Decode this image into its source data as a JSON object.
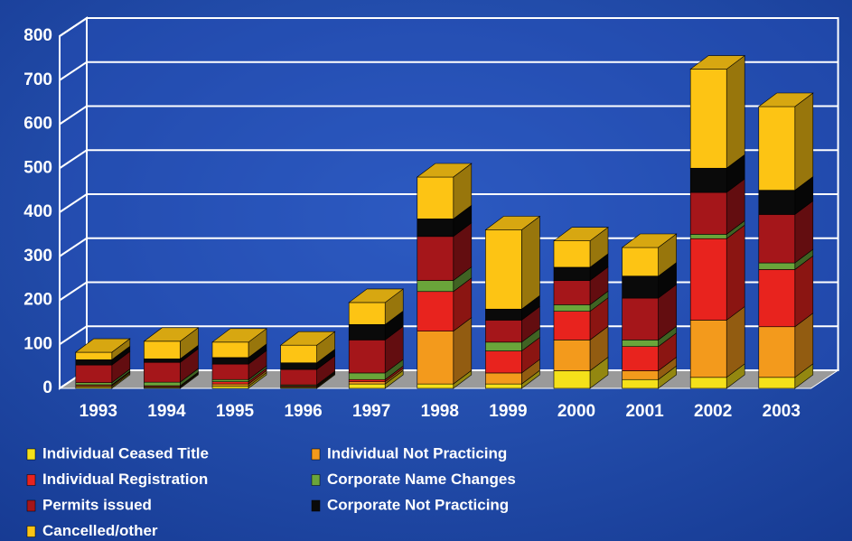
{
  "chart_data": {
    "type": "bar",
    "stacked": true,
    "categories": [
      "1993",
      "1994",
      "1995",
      "1996",
      "1997",
      "1998",
      "1999",
      "2000",
      "2001",
      "2002",
      "2003"
    ],
    "series": [
      {
        "name": "Individual Ceased Title",
        "color": "#f5e11a",
        "values": [
          3,
          2,
          5,
          2,
          10,
          10,
          10,
          40,
          20,
          25,
          25
        ]
      },
      {
        "name": "Individual Not Practicing",
        "color": "#f39a1c",
        "values": [
          3,
          2,
          5,
          2,
          5,
          120,
          25,
          70,
          20,
          130,
          115
        ]
      },
      {
        "name": "Individual Registration",
        "color": "#e8231e",
        "values": [
          2,
          2,
          5,
          2,
          5,
          90,
          50,
          65,
          55,
          185,
          130
        ]
      },
      {
        "name": "Corporate Name Changes",
        "color": "#6aa53a",
        "values": [
          5,
          8,
          5,
          2,
          15,
          25,
          20,
          15,
          15,
          10,
          15
        ]
      },
      {
        "name": "Permits issued",
        "color": "#a5161a",
        "values": [
          40,
          45,
          35,
          35,
          75,
          100,
          50,
          55,
          95,
          95,
          110
        ]
      },
      {
        "name": "Corporate Not Practicing",
        "color": "#0a0a0a",
        "values": [
          12,
          8,
          15,
          15,
          35,
          40,
          25,
          30,
          50,
          55,
          55
        ]
      },
      {
        "name": "Cancelled/other",
        "color": "#fdc414",
        "values": [
          17,
          40,
          35,
          40,
          50,
          95,
          180,
          60,
          65,
          225,
          190
        ]
      }
    ],
    "ylim": [
      0,
      800
    ],
    "yticks": [
      0,
      100,
      200,
      300,
      400,
      500,
      600,
      700,
      800
    ],
    "grid": true
  }
}
